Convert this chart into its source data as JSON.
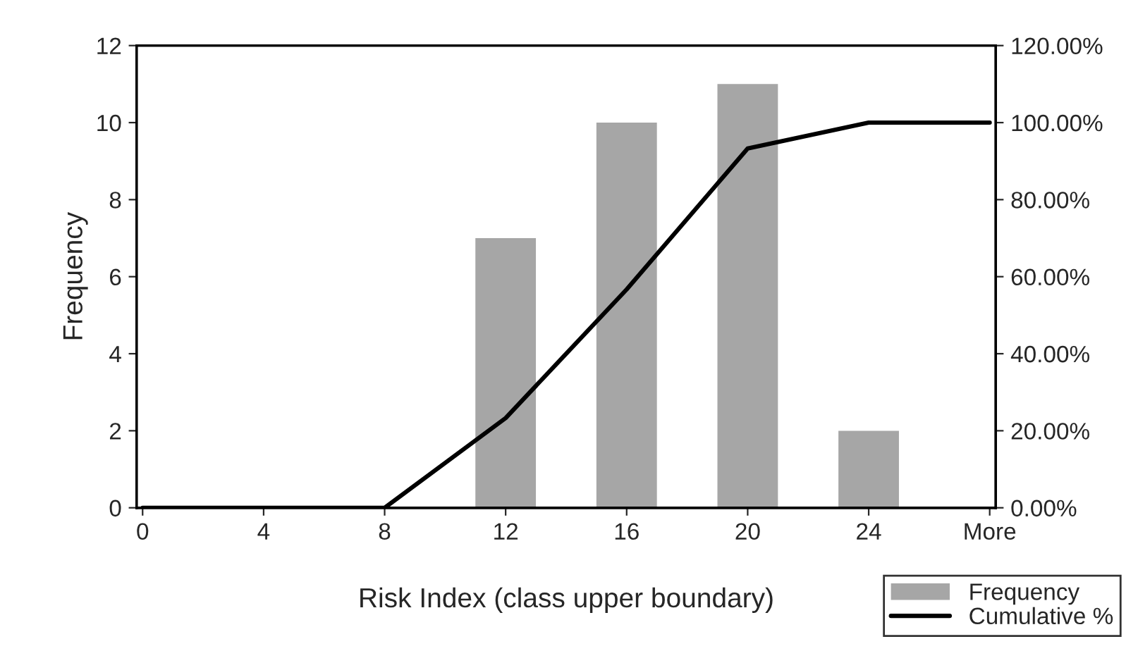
{
  "chart_data": {
    "type": "bar",
    "xlabel": "Risk Index (class upper boundary)",
    "ylabel": "Frequency",
    "categories": [
      "0",
      "4",
      "8",
      "12",
      "16",
      "20",
      "24",
      "More"
    ],
    "series": [
      {
        "name": "Frequency",
        "color": "#a6a6a6",
        "values": [
          0,
          0,
          0,
          7,
          10,
          11,
          2,
          0
        ]
      },
      {
        "name": "Cumulative %",
        "type": "line",
        "axis": "y2",
        "color": "#000000",
        "values": [
          0,
          0,
          0,
          23.3,
          56.7,
          93.3,
          100,
          100
        ]
      }
    ],
    "ylim": [
      0,
      12
    ],
    "yticks": [
      0,
      2,
      4,
      6,
      8,
      10,
      12
    ],
    "y2lim": [
      0,
      120
    ],
    "y2ticks": [
      {
        "value": 0,
        "label": "0.00%"
      },
      {
        "value": 20,
        "label": "20.00%"
      },
      {
        "value": 40,
        "label": "40.00%"
      },
      {
        "value": 60,
        "label": "60.00%"
      },
      {
        "value": 80,
        "label": "80.00%"
      },
      {
        "value": 100,
        "label": "100.00%"
      },
      {
        "value": 120,
        "label": "120.00%"
      }
    ],
    "grid": false,
    "legend": "bottom right",
    "marker": "none",
    "line_style": "solid"
  }
}
